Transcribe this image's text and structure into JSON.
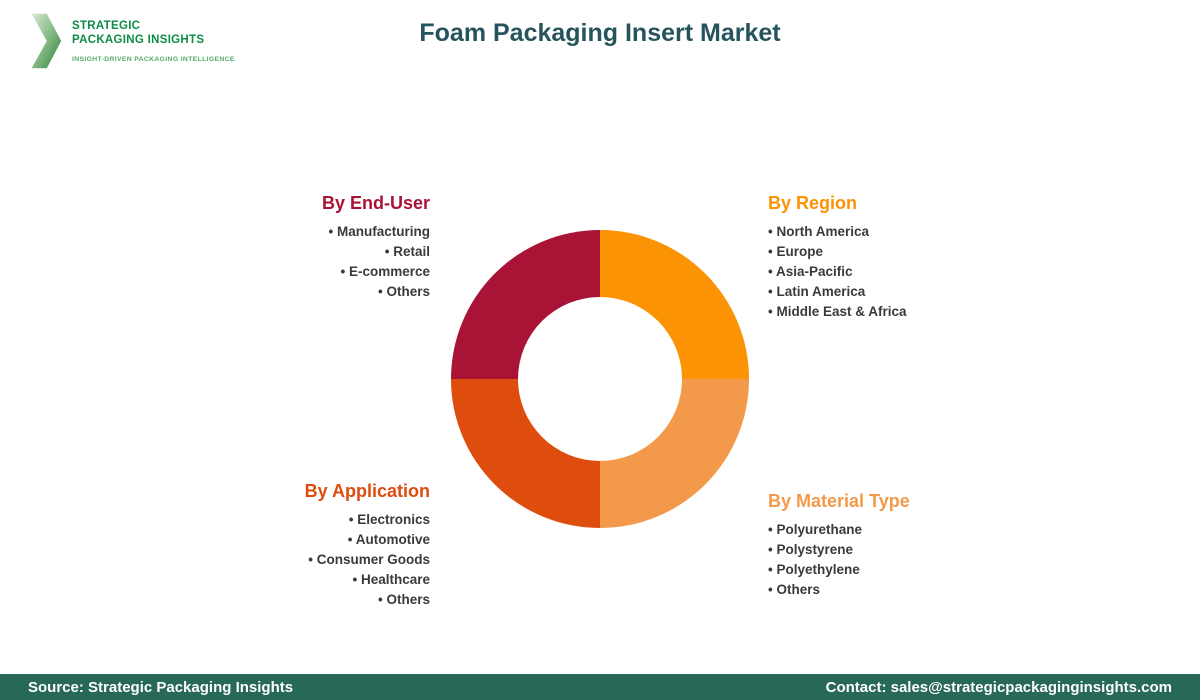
{
  "header": {
    "title": "Foam Packaging Insert Market",
    "logo": {
      "line1": "STRATEGIC",
      "line2": "PACKAGING INSIGHTS",
      "tagline": "INSIGHT-DRIVEN PACKAGING INTELLIGENCE"
    }
  },
  "theme": {
    "title_color": "#26545C",
    "footer_bg": "#286858",
    "footer_text": "#FFFFFF",
    "logo_green": "#0E8C46",
    "logo_tagline_green": "#55AC6C",
    "item_text": "#3A3A3A"
  },
  "chart_data": {
    "type": "pie",
    "title": "Foam Packaging Insert Market",
    "donut": true,
    "legend_position": "around",
    "segments": [
      {
        "name": "By Region",
        "value": 25,
        "color": "#FB9304",
        "position": "top-right",
        "items": [
          "North America",
          "Europe",
          "Asia-Pacific",
          "Latin America",
          "Middle East & Africa"
        ]
      },
      {
        "name": "By Material Type",
        "value": 25,
        "color": "#F3994A",
        "position": "bottom-right",
        "items": [
          "Polyurethane",
          "Polystyrene",
          "Polyethylene",
          "Others"
        ]
      },
      {
        "name": "By Application",
        "value": 25,
        "color": "#DE4D0D",
        "position": "bottom-left",
        "items": [
          "Electronics",
          "Automotive",
          "Consumer Goods",
          "Healthcare",
          "Others"
        ]
      },
      {
        "name": "By End-User",
        "value": 25,
        "color": "#A81336",
        "position": "top-left",
        "items": [
          "Manufacturing",
          "Retail",
          "E-commerce",
          "Others"
        ]
      }
    ]
  },
  "footer": {
    "source": "Source: Strategic Packaging Insights",
    "contact": "Contact: sales@strategicpackaginginsights.com"
  }
}
